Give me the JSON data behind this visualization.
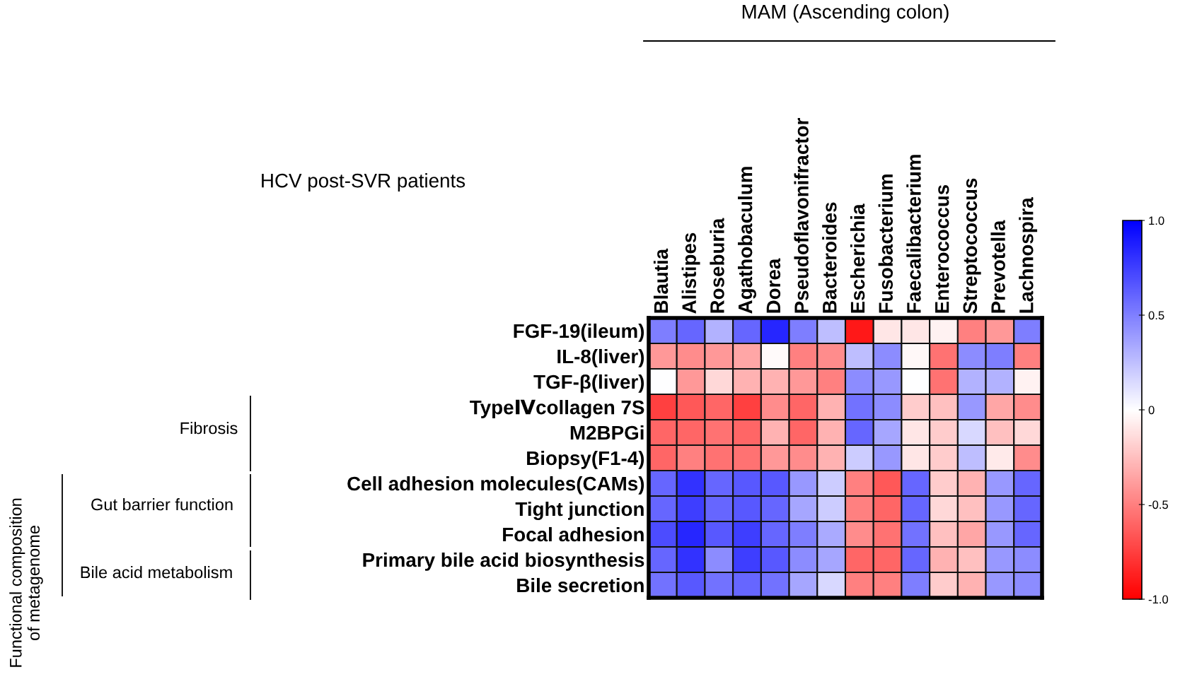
{
  "chart_data": {
    "type": "heatmap",
    "title": "MAM (Ascending colon)",
    "subtitle": "HCV post-SVR patients",
    "categories": [
      "Blautia",
      "Alistipes",
      "Roseburia",
      "Agathobaculum",
      "Dorea",
      "Pseudoflavonifractor",
      "Bacteroides",
      "Escherichia",
      "Fusobacterium",
      "Faecalibacterium",
      "Enterococcus",
      "Streptococcus",
      "Prevotella",
      "Lachnospira"
    ],
    "y_categories": [
      "FGF-19(ileum)",
      "IL-8(liver)",
      "TGF-β(liver)",
      "TypeⅣcollagen 7S",
      "M2BPGi",
      "Biopsy(F1-4)",
      "Cell adhesion molecules(CAMs)",
      "Tight junction",
      "Focal adhesion",
      "Primary bile acid biosynthesis",
      "Bile secretion"
    ],
    "cells": [
      [
        0.5,
        0.6,
        0.3,
        0.6,
        0.85,
        0.5,
        0.25,
        -0.9,
        -0.1,
        -0.1,
        -0.05,
        -0.5,
        -0.4,
        0.5
      ],
      [
        -0.4,
        -0.45,
        -0.4,
        -0.35,
        -0.02,
        -0.5,
        -0.45,
        0.25,
        0.45,
        -0.03,
        -0.55,
        0.45,
        0.5,
        -0.5
      ],
      [
        0,
        -0.4,
        -0.15,
        -0.3,
        -0.3,
        -0.4,
        -0.5,
        0.45,
        0.4,
        0,
        -0.55,
        0.3,
        0.3,
        -0.05
      ],
      [
        -0.75,
        -0.65,
        -0.6,
        -0.75,
        -0.45,
        -0.6,
        -0.3,
        0.55,
        0.45,
        -0.2,
        -0.25,
        0.4,
        -0.35,
        -0.45
      ],
      [
        -0.6,
        -0.6,
        -0.55,
        -0.6,
        -0.3,
        -0.6,
        -0.3,
        0.6,
        0.35,
        -0.1,
        -0.2,
        0.15,
        -0.25,
        -0.15
      ],
      [
        -0.6,
        -0.5,
        -0.55,
        -0.55,
        -0.4,
        -0.45,
        -0.3,
        0.2,
        0.4,
        -0.1,
        -0.2,
        0.25,
        -0.08,
        -0.45
      ],
      [
        0.6,
        0.8,
        0.6,
        0.65,
        0.65,
        0.4,
        0.2,
        -0.5,
        -0.65,
        0.6,
        -0.2,
        -0.3,
        0.4,
        0.6
      ],
      [
        0.6,
        0.75,
        0.6,
        0.65,
        0.6,
        0.35,
        0.2,
        -0.5,
        -0.6,
        0.6,
        -0.15,
        -0.25,
        0.4,
        0.6
      ],
      [
        0.7,
        0.85,
        0.65,
        0.75,
        0.6,
        0.5,
        0.33,
        -0.45,
        -0.55,
        0.55,
        -0.25,
        -0.35,
        0.4,
        0.6
      ],
      [
        0.6,
        0.8,
        0.45,
        0.75,
        0.65,
        0.45,
        0.35,
        -0.6,
        -0.6,
        0.6,
        -0.3,
        -0.25,
        0.4,
        0.45
      ],
      [
        0.55,
        0.65,
        0.55,
        0.6,
        0.55,
        0.35,
        0.15,
        -0.5,
        -0.5,
        0.5,
        -0.2,
        -0.3,
        0.4,
        0.45
      ]
    ],
    "clim": [
      -1,
      1
    ],
    "cticks": [
      {
        "value": -1,
        "label": "-1.0"
      },
      -0.5,
      0,
      0.5,
      {
        "value": 1,
        "label": "1.0"
      }
    ],
    "annotations": [
      "Fibrosis",
      "Gut barrier function",
      "Bile acid metabolism",
      "Functional composition\nof metagenome"
    ]
  }
}
